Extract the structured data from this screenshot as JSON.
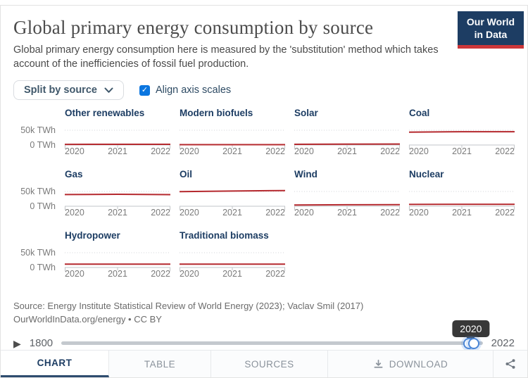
{
  "header": {
    "title": "Global primary energy consumption by source",
    "subtitle": "Global primary energy consumption here is measured by the 'substitution' method which takes account of the inefficiencies of fossil fuel production.",
    "logo_line1": "Our World",
    "logo_line2": "in Data"
  },
  "controls": {
    "split_dropdown_label": "Split by source",
    "align_checkbox_label": "Align axis scales",
    "align_checked": true,
    "check_glyph": "✓"
  },
  "chart_data": {
    "type": "line",
    "layout": "facet-grid",
    "x": [
      2020,
      2021,
      2022
    ],
    "x_tick_labels": [
      "2020",
      "2021",
      "2022"
    ],
    "ylim": [
      0,
      50000
    ],
    "y_tick_labels": {
      "top": "50k TWh",
      "bottom": "0 TWh"
    },
    "gridline_value": 50000,
    "grid": "dotted-50k-only",
    "line_color": "#b5292e",
    "series": [
      {
        "name": "Other renewables",
        "values": [
          2200,
          2300,
          2400
        ]
      },
      {
        "name": "Modern biofuels",
        "values": [
          1100,
          1150,
          1250
        ]
      },
      {
        "name": "Solar",
        "values": [
          2300,
          2900,
          3450
        ]
      },
      {
        "name": "Coal",
        "values": [
          43500,
          45000,
          44900
        ]
      },
      {
        "name": "Gas",
        "values": [
          39500,
          40500,
          39400
        ]
      },
      {
        "name": "Oil",
        "values": [
          49500,
          51500,
          53000
        ]
      },
      {
        "name": "Wind",
        "values": [
          4200,
          4900,
          5500
        ]
      },
      {
        "name": "Nuclear",
        "values": [
          6300,
          6600,
          6700
        ]
      },
      {
        "name": "Hydropower",
        "values": [
          11100,
          11200,
          11300
        ]
      },
      {
        "name": "Traditional biomass",
        "values": [
          11300,
          11400,
          11400
        ]
      }
    ],
    "rows": [
      [
        0,
        1,
        2,
        3
      ],
      [
        4,
        5,
        6,
        7
      ],
      [
        8,
        9
      ]
    ]
  },
  "footer": {
    "source_line1": "Source: Energy Institute Statistical Review of World Energy (2023); Vaclav Smil (2017)",
    "source_line2": "OurWorldInData.org/energy • CC BY"
  },
  "timeline": {
    "play_glyph": "▶",
    "start_label": "1800",
    "end_label": "2022",
    "tooltip": "2020",
    "handle_year": 2020
  },
  "tabs": [
    {
      "label": "CHART",
      "active": true
    },
    {
      "label": "TABLE",
      "active": false
    },
    {
      "label": "SOURCES",
      "active": false
    },
    {
      "label": "DOWNLOAD",
      "active": false,
      "icon": "download"
    }
  ],
  "colors": {
    "accent_navy": "#1d3d63",
    "line_red": "#b5292e",
    "logo_red": "#cc3639",
    "checkbox_blue": "#0b76e0",
    "handle_blue": "#4b86d6"
  }
}
